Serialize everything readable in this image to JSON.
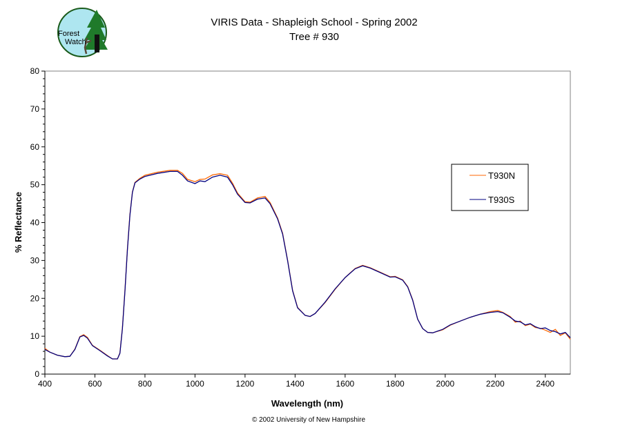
{
  "logo": {
    "text": "Forest Watch",
    "icon": "forest-watch-logo-tree"
  },
  "footer": "© 2002 University of New Hampshire",
  "chart_data": {
    "type": "line",
    "title": "VIRIS Data - Shapleigh School - Spring 2002",
    "subtitle": "Tree # 930",
    "xlabel": "Wavelength (nm)",
    "ylabel": "% Reflectance",
    "xlim": [
      400,
      2500
    ],
    "ylim": [
      0,
      80
    ],
    "xticks": [
      400,
      600,
      800,
      1000,
      1200,
      1400,
      1600,
      1800,
      2000,
      2200,
      2400
    ],
    "yticks": [
      0,
      10,
      20,
      30,
      40,
      50,
      60,
      70,
      80
    ],
    "grid": false,
    "legend": "right",
    "x": [
      400,
      420,
      450,
      480,
      500,
      520,
      540,
      555,
      570,
      590,
      620,
      650,
      670,
      690,
      700,
      710,
      720,
      730,
      740,
      750,
      760,
      780,
      800,
      850,
      900,
      930,
      950,
      970,
      1000,
      1020,
      1040,
      1070,
      1100,
      1130,
      1150,
      1170,
      1200,
      1220,
      1250,
      1280,
      1300,
      1330,
      1350,
      1370,
      1390,
      1410,
      1440,
      1460,
      1480,
      1520,
      1560,
      1600,
      1640,
      1670,
      1700,
      1740,
      1780,
      1800,
      1830,
      1850,
      1870,
      1890,
      1910,
      1930,
      1950,
      1990,
      2020,
      2060,
      2100,
      2140,
      2180,
      2210,
      2230,
      2260,
      2280,
      2300,
      2320,
      2340,
      2360,
      2380,
      2400,
      2420,
      2440,
      2460,
      2480,
      2500
    ],
    "series": [
      {
        "name": "T930N",
        "color": "#ff6600",
        "values": [
          6.8,
          5.8,
          5.0,
          4.6,
          4.7,
          6.6,
          9.9,
          10.4,
          9.7,
          7.6,
          6.3,
          4.9,
          4.0,
          4.0,
          5.6,
          12.2,
          22.2,
          33.2,
          42.2,
          48.1,
          50.6,
          51.7,
          52.5,
          53.3,
          53.8,
          53.8,
          53.0,
          51.4,
          50.8,
          51.4,
          51.5,
          52.6,
          52.9,
          52.5,
          50.4,
          47.8,
          45.5,
          45.4,
          46.5,
          46.9,
          45.3,
          41.2,
          37.2,
          30.1,
          22.1,
          17.6,
          15.5,
          15.2,
          16.0,
          18.9,
          22.4,
          25.5,
          27.9,
          28.7,
          28.1,
          26.9,
          25.7,
          25.8,
          24.9,
          23.1,
          19.6,
          14.5,
          12.0,
          11.0,
          10.9,
          11.7,
          12.9,
          14.0,
          15.0,
          15.8,
          16.5,
          16.8,
          16.3,
          15.2,
          13.7,
          14.0,
          12.8,
          13.2,
          12.3,
          12.1,
          11.6,
          11.0,
          11.8,
          10.2,
          10.9,
          9.2
        ]
      },
      {
        "name": "T930S",
        "color": "#000080",
        "values": [
          6.5,
          5.8,
          5.0,
          4.6,
          4.7,
          6.5,
          9.8,
          10.2,
          9.5,
          7.5,
          6.2,
          4.8,
          4.0,
          4.0,
          5.5,
          12.0,
          22.0,
          33.0,
          42.0,
          48.0,
          50.5,
          51.5,
          52.2,
          53.0,
          53.5,
          53.5,
          52.5,
          51.0,
          50.3,
          51.0,
          50.8,
          52.0,
          52.5,
          52.0,
          50.0,
          47.5,
          45.3,
          45.2,
          46.2,
          46.5,
          45.0,
          41.0,
          37.0,
          30.0,
          22.0,
          17.5,
          15.5,
          15.2,
          16.0,
          19.0,
          22.5,
          25.5,
          27.8,
          28.6,
          28.0,
          26.8,
          25.6,
          25.7,
          24.8,
          23.0,
          19.5,
          14.5,
          12.0,
          11.0,
          10.9,
          11.8,
          13.0,
          14.0,
          15.0,
          15.8,
          16.3,
          16.5,
          16.2,
          15.0,
          14.0,
          13.8,
          13.0,
          13.3,
          12.5,
          12.0,
          12.2,
          11.5,
          11.2,
          10.6,
          11.0,
          9.6
        ]
      }
    ]
  }
}
